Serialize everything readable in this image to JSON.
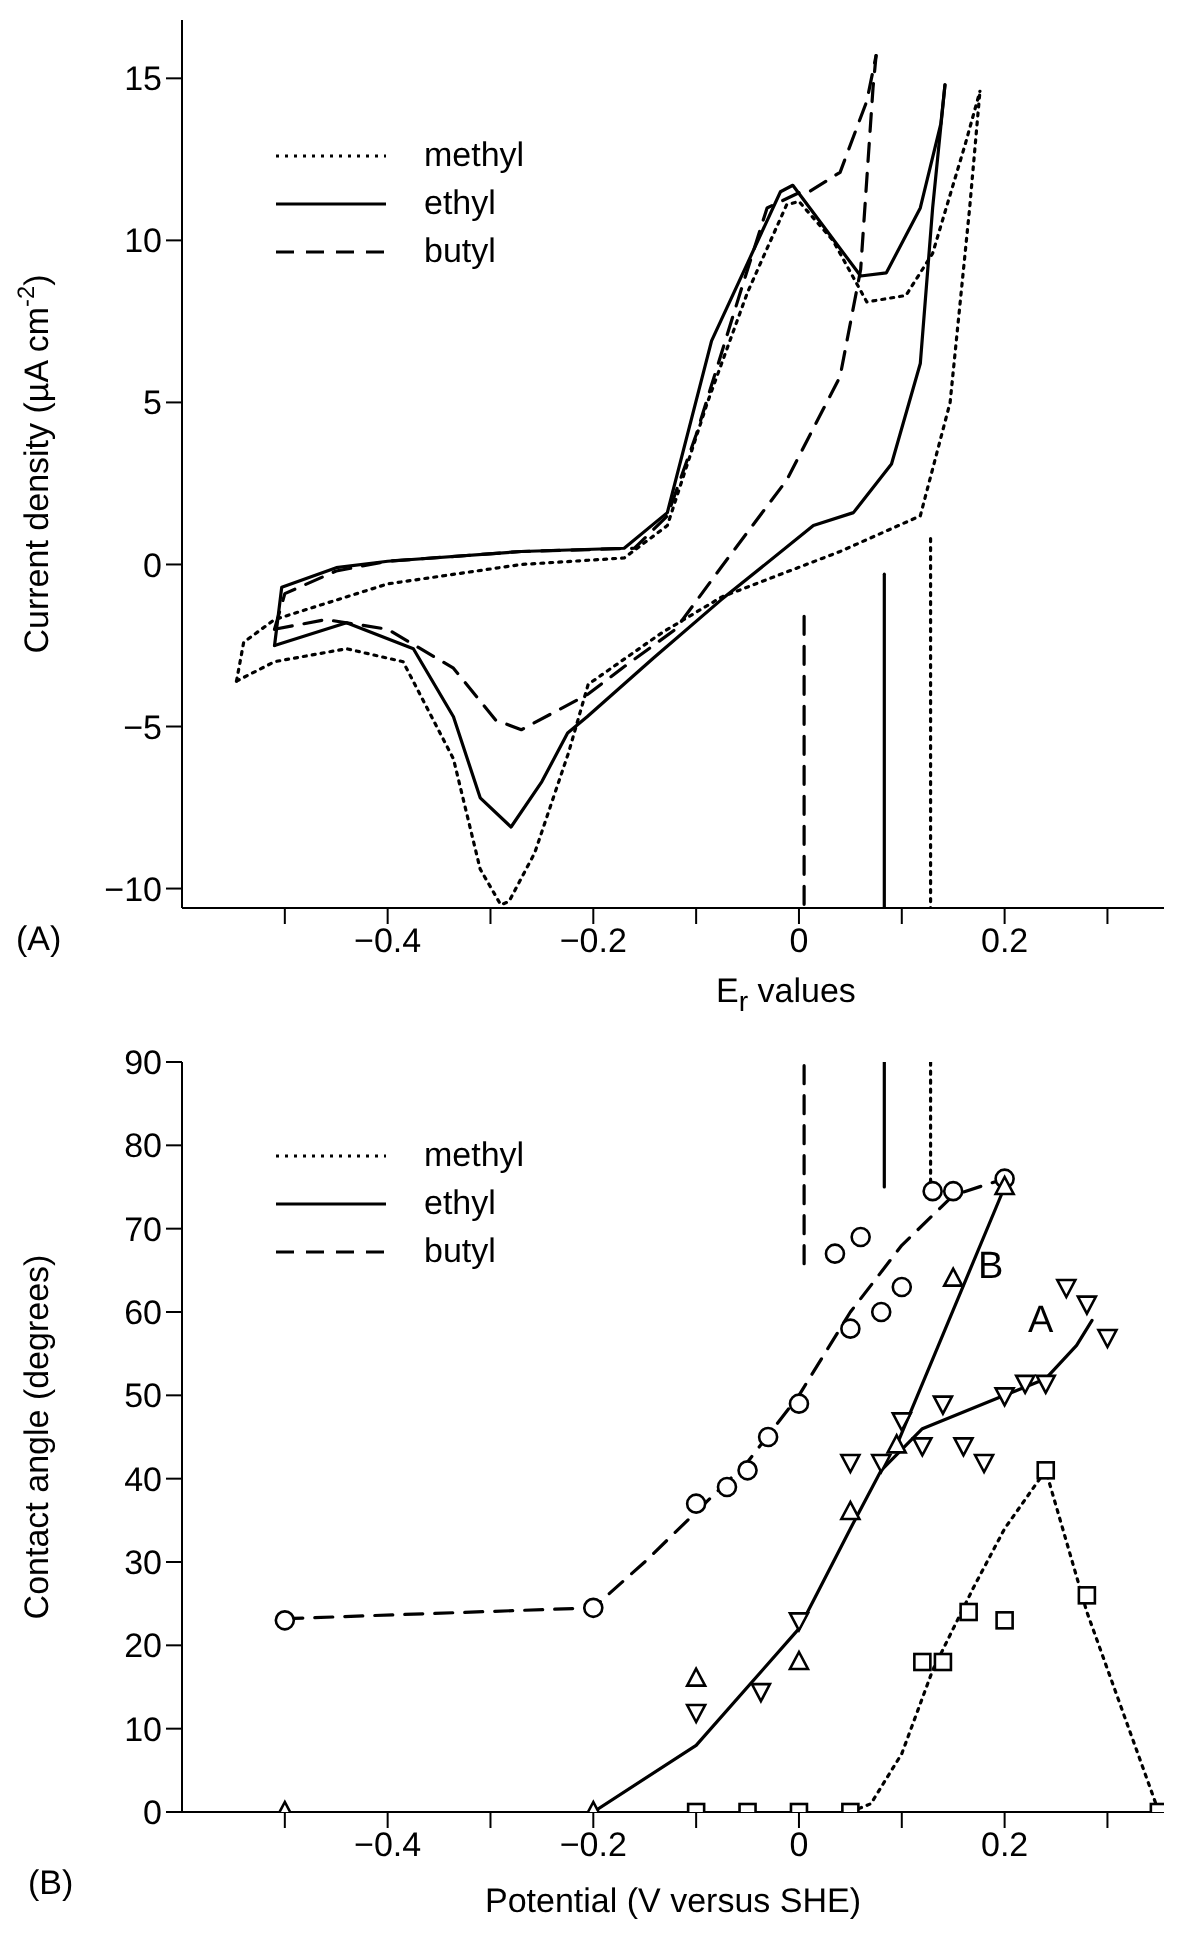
{
  "chart_data": [
    {
      "type": "line",
      "ylabel": "Current density (µA cm$^{-2}$)",
      "xlim": [
        -0.6,
        0.355
      ],
      "ylim": [
        -10.6,
        16.8
      ],
      "xticks": [
        {
          "value": -0.5,
          "label": null
        },
        {
          "value": -0.4,
          "label": "−0.4"
        },
        {
          "value": -0.3,
          "label": null
        },
        {
          "value": -0.2,
          "label": "−0.2"
        },
        {
          "value": -0.1,
          "label": null
        },
        {
          "value": 0,
          "label": "0"
        },
        {
          "value": 0.1,
          "label": null
        },
        0.2,
        {
          "value": 0.3,
          "label": null
        }
      ],
      "yticks": [
        {
          "value": -10,
          "label": "−10"
        },
        {
          "value": -5,
          "label": "−5"
        },
        {
          "value": 0,
          "label": "0"
        },
        5,
        10,
        15
      ],
      "legend": "top left",
      "annotations": [
        "(A)",
        "E$_{r}$ values"
      ],
      "series": [
        {
          "name": "methyl",
          "color": "#000000",
          "line_style": "dotted",
          "marker": "none",
          "x": [
            -0.547,
            -0.54,
            -0.51,
            -0.46,
            -0.4,
            -0.27,
            -0.17,
            -0.128,
            -0.089,
            -0.05,
            -0.012,
            0.0,
            0.033,
            0.066,
            0.104,
            0.13,
            0.162,
            0.176
          ],
          "values": [
            -3.6,
            -2.4,
            -1.7,
            -1.2,
            -0.6,
            0,
            0.2,
            1.2,
            5,
            8.4,
            11.1,
            11.2,
            10,
            8.1,
            8.3,
            9.6,
            13,
            14.6
          ]
        },
        {
          "name": "ethyl",
          "color": "#000000",
          "line_style": "solid",
          "marker": "none",
          "x": [
            -0.51,
            -0.503,
            -0.45,
            -0.4,
            -0.27,
            -0.17,
            -0.128,
            -0.085,
            -0.05,
            -0.018,
            -0.006,
            0.02,
            0.06,
            0.085,
            0.118,
            0.138,
            0.142
          ],
          "values": [
            -2.5,
            -0.7,
            -0.1,
            0.1,
            0.4,
            0.5,
            1.6,
            6.9,
            9.3,
            11.5,
            11.7,
            10.6,
            8.9,
            9.0,
            11,
            13.6,
            14.8
          ]
        },
        {
          "name": "butyl",
          "color": "#000000",
          "line_style": "dashed",
          "marker": "none",
          "x": [
            -0.51,
            -0.5,
            -0.45,
            -0.4,
            -0.27,
            -0.16,
            -0.128,
            -0.1,
            -0.056,
            -0.031,
            0.002,
            0.01,
            0.04,
            0.066,
            0.075
          ],
          "values": [
            -2,
            -0.9,
            -0.2,
            0.1,
            0.4,
            0.5,
            1.5,
            4,
            8.5,
            11,
            11.5,
            11.5,
            12.1,
            14.3,
            15.7
          ]
        },
        {
          "color": "#000000",
          "line_style": "dotted",
          "marker": "none",
          "x": [
            -0.547,
            -0.51,
            -0.44,
            -0.385,
            -0.336,
            -0.31,
            -0.29,
            -0.282,
            -0.257,
            -0.224,
            -0.205,
            -0.133,
            -0.075,
            0.04,
            0.118,
            0.147,
            0.166,
            0.176
          ],
          "values": [
            -3.6,
            -3,
            -2.6,
            -3,
            -6,
            -9.4,
            -10.5,
            -10.4,
            -8.9,
            -5.8,
            -3.7,
            -2.1,
            -1,
            0.4,
            1.5,
            5,
            11,
            14.6
          ]
        },
        {
          "color": "#000000",
          "line_style": "solid",
          "marker": "none",
          "x": [
            -0.51,
            -0.44,
            -0.375,
            -0.336,
            -0.31,
            -0.28,
            -0.25,
            -0.225,
            -0.206,
            -0.142,
            -0.076,
            0.014,
            0.053,
            0.09,
            0.118,
            0.13,
            0.142
          ],
          "values": [
            -2.5,
            -1.8,
            -2.6,
            -4.7,
            -7.2,
            -8.1,
            -6.7,
            -5.2,
            -4.7,
            -2.9,
            -1.1,
            1.2,
            1.6,
            3.1,
            6.2,
            11,
            14.8
          ]
        },
        {
          "color": "#000000",
          "line_style": "dashed",
          "marker": "none",
          "x": [
            -0.51,
            -0.46,
            -0.4,
            -0.336,
            -0.295,
            -0.27,
            -0.205,
            -0.172,
            -0.12,
            -0.076,
            -0.012,
            0.04,
            0.06,
            0.072,
            0.075
          ],
          "values": [
            -2,
            -1.7,
            -2,
            -3.2,
            -4.8,
            -5.1,
            -4,
            -3.2,
            -2,
            -0.1,
            2.6,
            5.8,
            9.1,
            14.7,
            15.7
          ]
        },
        {
          "color": "#000000",
          "line_style": "dashed",
          "marker": "none",
          "x": [
            0.005,
            0.005
          ],
          "values": [
            -1.6,
            -10.6
          ]
        },
        {
          "color": "#000000",
          "line_style": "solid",
          "marker": "none",
          "x": [
            0.083,
            0.083
          ],
          "values": [
            -0.3,
            -10.6
          ]
        },
        {
          "color": "#000000",
          "line_style": "dotted",
          "marker": "none",
          "x": [
            0.128,
            0.128
          ],
          "values": [
            0.8,
            -10.6
          ]
        }
      ]
    },
    {
      "type": "line",
      "xlabel": "Potential (V versus SHE)",
      "ylabel": "Contact angle (degrees)",
      "xlim": [
        -0.6,
        0.355
      ],
      "ylim": [
        0,
        90
      ],
      "xticks": [
        {
          "value": -0.5,
          "label": null
        },
        {
          "value": -0.4,
          "label": "−0.4"
        },
        {
          "value": -0.3,
          "label": null
        },
        {
          "value": -0.2,
          "label": "−0.2"
        },
        {
          "value": -0.1,
          "label": null
        },
        {
          "value": 0,
          "label": "0"
        },
        {
          "value": 0.1,
          "label": null
        },
        0.2,
        {
          "value": 0.3,
          "label": null
        }
      ],
      "yticks": [
        {
          "value": 0,
          "label": "0"
        },
        10,
        20,
        30,
        40,
        50,
        60,
        70,
        80,
        90
      ],
      "legend": "top left",
      "annotations": [
        "(B)",
        "B",
        "A"
      ],
      "series": [
        {
          "name": "methyl",
          "color": "#000000",
          "line_style": "dotted",
          "marker": "none",
          "x": [
            0.05,
            0.07,
            0.1,
            0.13,
            0.17,
            0.2,
            0.24,
            0.28,
            0.35
          ],
          "values": [
            0,
            1,
            7,
            17,
            27,
            34,
            41,
            24,
            0
          ]
        },
        {
          "name": "ethyl",
          "color": "#000000",
          "line_style": "solid",
          "marker": "none",
          "x": [
            -0.2,
            -0.1,
            0,
            0.05,
            0.08,
            0.12,
            0.2,
            0.24,
            0.27,
            0.285
          ],
          "values": [
            0,
            8,
            22,
            34,
            41,
            46,
            50,
            52,
            56,
            59
          ]
        },
        {
          "name": "butyl",
          "color": "#000000",
          "line_style": "dashed",
          "marker": "none",
          "x": [
            -0.5,
            -0.2,
            -0.15,
            -0.1,
            -0.05,
            0,
            0.05,
            0.1,
            0.15,
            0.2
          ],
          "values": [
            23.2,
            24.5,
            30,
            36,
            42,
            50,
            60,
            68,
            74,
            76
          ]
        },
        {
          "color": "#000000",
          "line_style": "solid",
          "marker": "none",
          "x": [
            0.095,
            0.2
          ],
          "values": [
            44,
            75
          ]
        },
        {
          "type": "scatter",
          "color": "#000000",
          "marker": "circle",
          "x": [
            -0.5,
            -0.2,
            -0.1,
            -0.07,
            -0.05,
            -0.03,
            0,
            0.035,
            0.05,
            0.06,
            0.08,
            0.1,
            0.13,
            0.15,
            0.2
          ],
          "values": [
            23,
            24.5,
            37,
            39,
            41,
            45,
            49,
            67,
            58,
            69,
            60,
            63,
            74.5,
            74.5,
            76
          ]
        },
        {
          "type": "scatter",
          "color": "#000000",
          "marker": "triangle",
          "x": [
            -0.5,
            -0.2,
            -0.1,
            0,
            0.05,
            0.095,
            0.15,
            0.2
          ],
          "values": [
            0,
            0,
            16,
            18,
            36,
            44,
            64,
            75
          ]
        },
        {
          "type": "scatter",
          "color": "#000000",
          "marker": "triangle-down",
          "x": [
            -0.1,
            -0.037,
            0,
            0.05,
            0.08,
            0.1,
            0.12,
            0.14,
            0.16,
            0.18,
            0.2,
            0.22,
            0.24,
            0.26,
            0.28,
            0.3
          ],
          "values": [
            12,
            14.5,
            23,
            42,
            42,
            47,
            44,
            49,
            44,
            42,
            50,
            51.5,
            51.5,
            63,
            61,
            57
          ]
        },
        {
          "type": "scatter",
          "color": "#000000",
          "marker": "square",
          "x": [
            -0.1,
            -0.05,
            0,
            0.05,
            0.12,
            0.14,
            0.165,
            0.2,
            0.24,
            0.28,
            0.35
          ],
          "values": [
            0,
            0,
            0,
            0,
            18,
            18,
            24,
            23,
            41,
            26,
            0
          ]
        },
        {
          "color": "#000000",
          "line_style": "dashed",
          "marker": "none",
          "x": [
            0.005,
            0.005
          ],
          "values": [
            65.8,
            90
          ]
        },
        {
          "color": "#000000",
          "line_style": "solid",
          "marker": "none",
          "x": [
            0.083,
            0.083
          ],
          "values": [
            75,
            90
          ]
        },
        {
          "color": "#000000",
          "line_style": "dotted",
          "marker": "none",
          "x": [
            0.128,
            0.128
          ],
          "values": [
            74.5,
            90
          ]
        }
      ]
    }
  ]
}
